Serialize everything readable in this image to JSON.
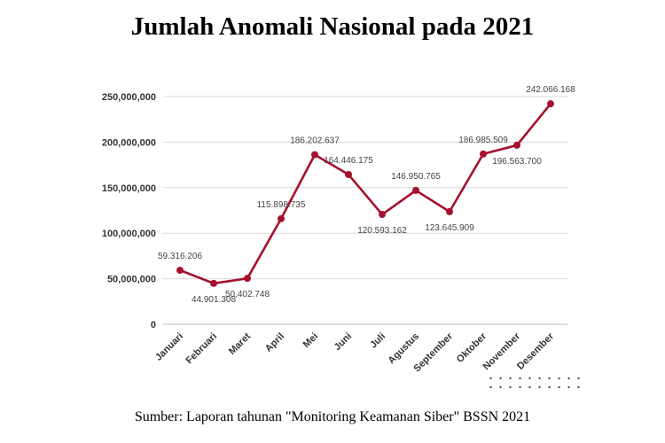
{
  "title": "Jumlah Anomali Nasional pada 2021",
  "source": "Sumber: Laporan tahunan \"Monitoring Keamanan Siber\" BSSN 2021",
  "chart_data": {
    "type": "line",
    "title": "Jumlah Anomali Nasional pada 2021",
    "categories": [
      "Januari",
      "Februari",
      "Maret",
      "April",
      "Mei",
      "Juni",
      "Juli",
      "Agustus",
      "September",
      "Oktober",
      "November",
      "Desember"
    ],
    "values": [
      59316206,
      44901308,
      50402748,
      115898735,
      186202637,
      164446175,
      120593162,
      146950765,
      123645909,
      186985509,
      196563700,
      242066168
    ],
    "data_labels": [
      "59.316.206",
      "44.901.308",
      "50.402.748",
      "115.898.735",
      "186.202.637",
      "164.446.175",
      "120.593.162",
      "146.950.765",
      "123.645.909",
      "186.985.509",
      "196.563.700",
      "242.066.168"
    ],
    "yticks": [
      0,
      50000000,
      100000000,
      150000000,
      200000000,
      250000000
    ],
    "ytick_labels": [
      "0",
      "50,000,000",
      "100,000,000",
      "150,000,000",
      "200,000,000",
      "250,000,000"
    ],
    "ylim": [
      0,
      250000000
    ],
    "grid": true,
    "legend": "none",
    "colors": {
      "line": "#A5112E",
      "grid": "#d9d9d9",
      "axis": "#bbbbbb"
    }
  }
}
